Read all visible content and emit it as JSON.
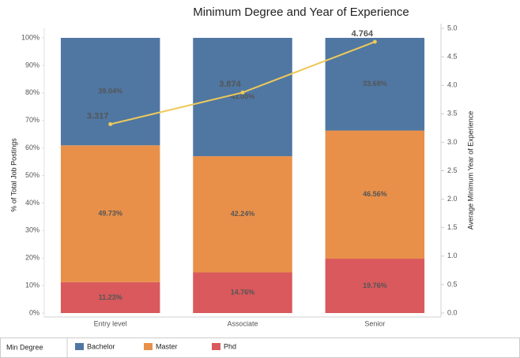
{
  "chart_data": {
    "type": "bar",
    "stacked": true,
    "title": "Minimum Degree and Year of Experience",
    "y_label": "% of Total Job Postings",
    "y2_label": "Average Minimum Year of Experience",
    "legend_title": "Min Degree",
    "categories": [
      "Entry level",
      "Associate",
      "Senior"
    ],
    "series": [
      {
        "name": "Bachelor",
        "color": "#4f77a2",
        "values": [
          39.04,
          43.0,
          33.68
        ],
        "value_labels": [
          "39.04%",
          "43.00%",
          "33.68%"
        ]
      },
      {
        "name": "Master",
        "color": "#e8904a",
        "values": [
          49.73,
          42.24,
          46.56
        ],
        "value_labels": [
          "49.73%",
          "42.24%",
          "46.56%"
        ]
      },
      {
        "name": "Phd",
        "color": "#d9595c",
        "values": [
          11.23,
          14.76,
          19.76
        ],
        "value_labels": [
          "11.23%",
          "14.76%",
          "19.76%"
        ]
      }
    ],
    "line": {
      "type": "line",
      "axis": "y2",
      "color": "#edc95a",
      "values": [
        3.317,
        3.874,
        4.764
      ]
    },
    "ylim": [
      0,
      100
    ],
    "yticks": [
      {
        "value": 0,
        "label": "0%"
      },
      {
        "value": 10,
        "label": "10%"
      },
      {
        "value": 20,
        "label": "20%"
      },
      {
        "value": 30,
        "label": "30%"
      },
      {
        "value": 40,
        "label": "40%"
      },
      {
        "value": 50,
        "label": "50%"
      },
      {
        "value": 60,
        "label": "60%"
      },
      {
        "value": 70,
        "label": "70%"
      },
      {
        "value": 80,
        "label": "80%"
      },
      {
        "value": 90,
        "label": "90%"
      },
      {
        "value": 100,
        "label": "100%"
      }
    ],
    "y2lim": [
      0,
      5
    ],
    "y2ticks": [
      {
        "value": 0,
        "label": "0.0"
      },
      {
        "value": 0.5,
        "label": "0.5"
      },
      {
        "value": 1,
        "label": "1.0"
      },
      {
        "value": 1.5,
        "label": "1.5"
      },
      {
        "value": 2,
        "label": "2.0"
      },
      {
        "value": 2.5,
        "label": "2.5"
      },
      {
        "value": 3,
        "label": "3.0"
      },
      {
        "value": 3.5,
        "label": "3.5"
      },
      {
        "value": 4,
        "label": "4.0"
      },
      {
        "value": 4.5,
        "label": "4.5"
      },
      {
        "value": 5,
        "label": "5.0"
      }
    ],
    "grid": false,
    "legend": "bottom"
  }
}
